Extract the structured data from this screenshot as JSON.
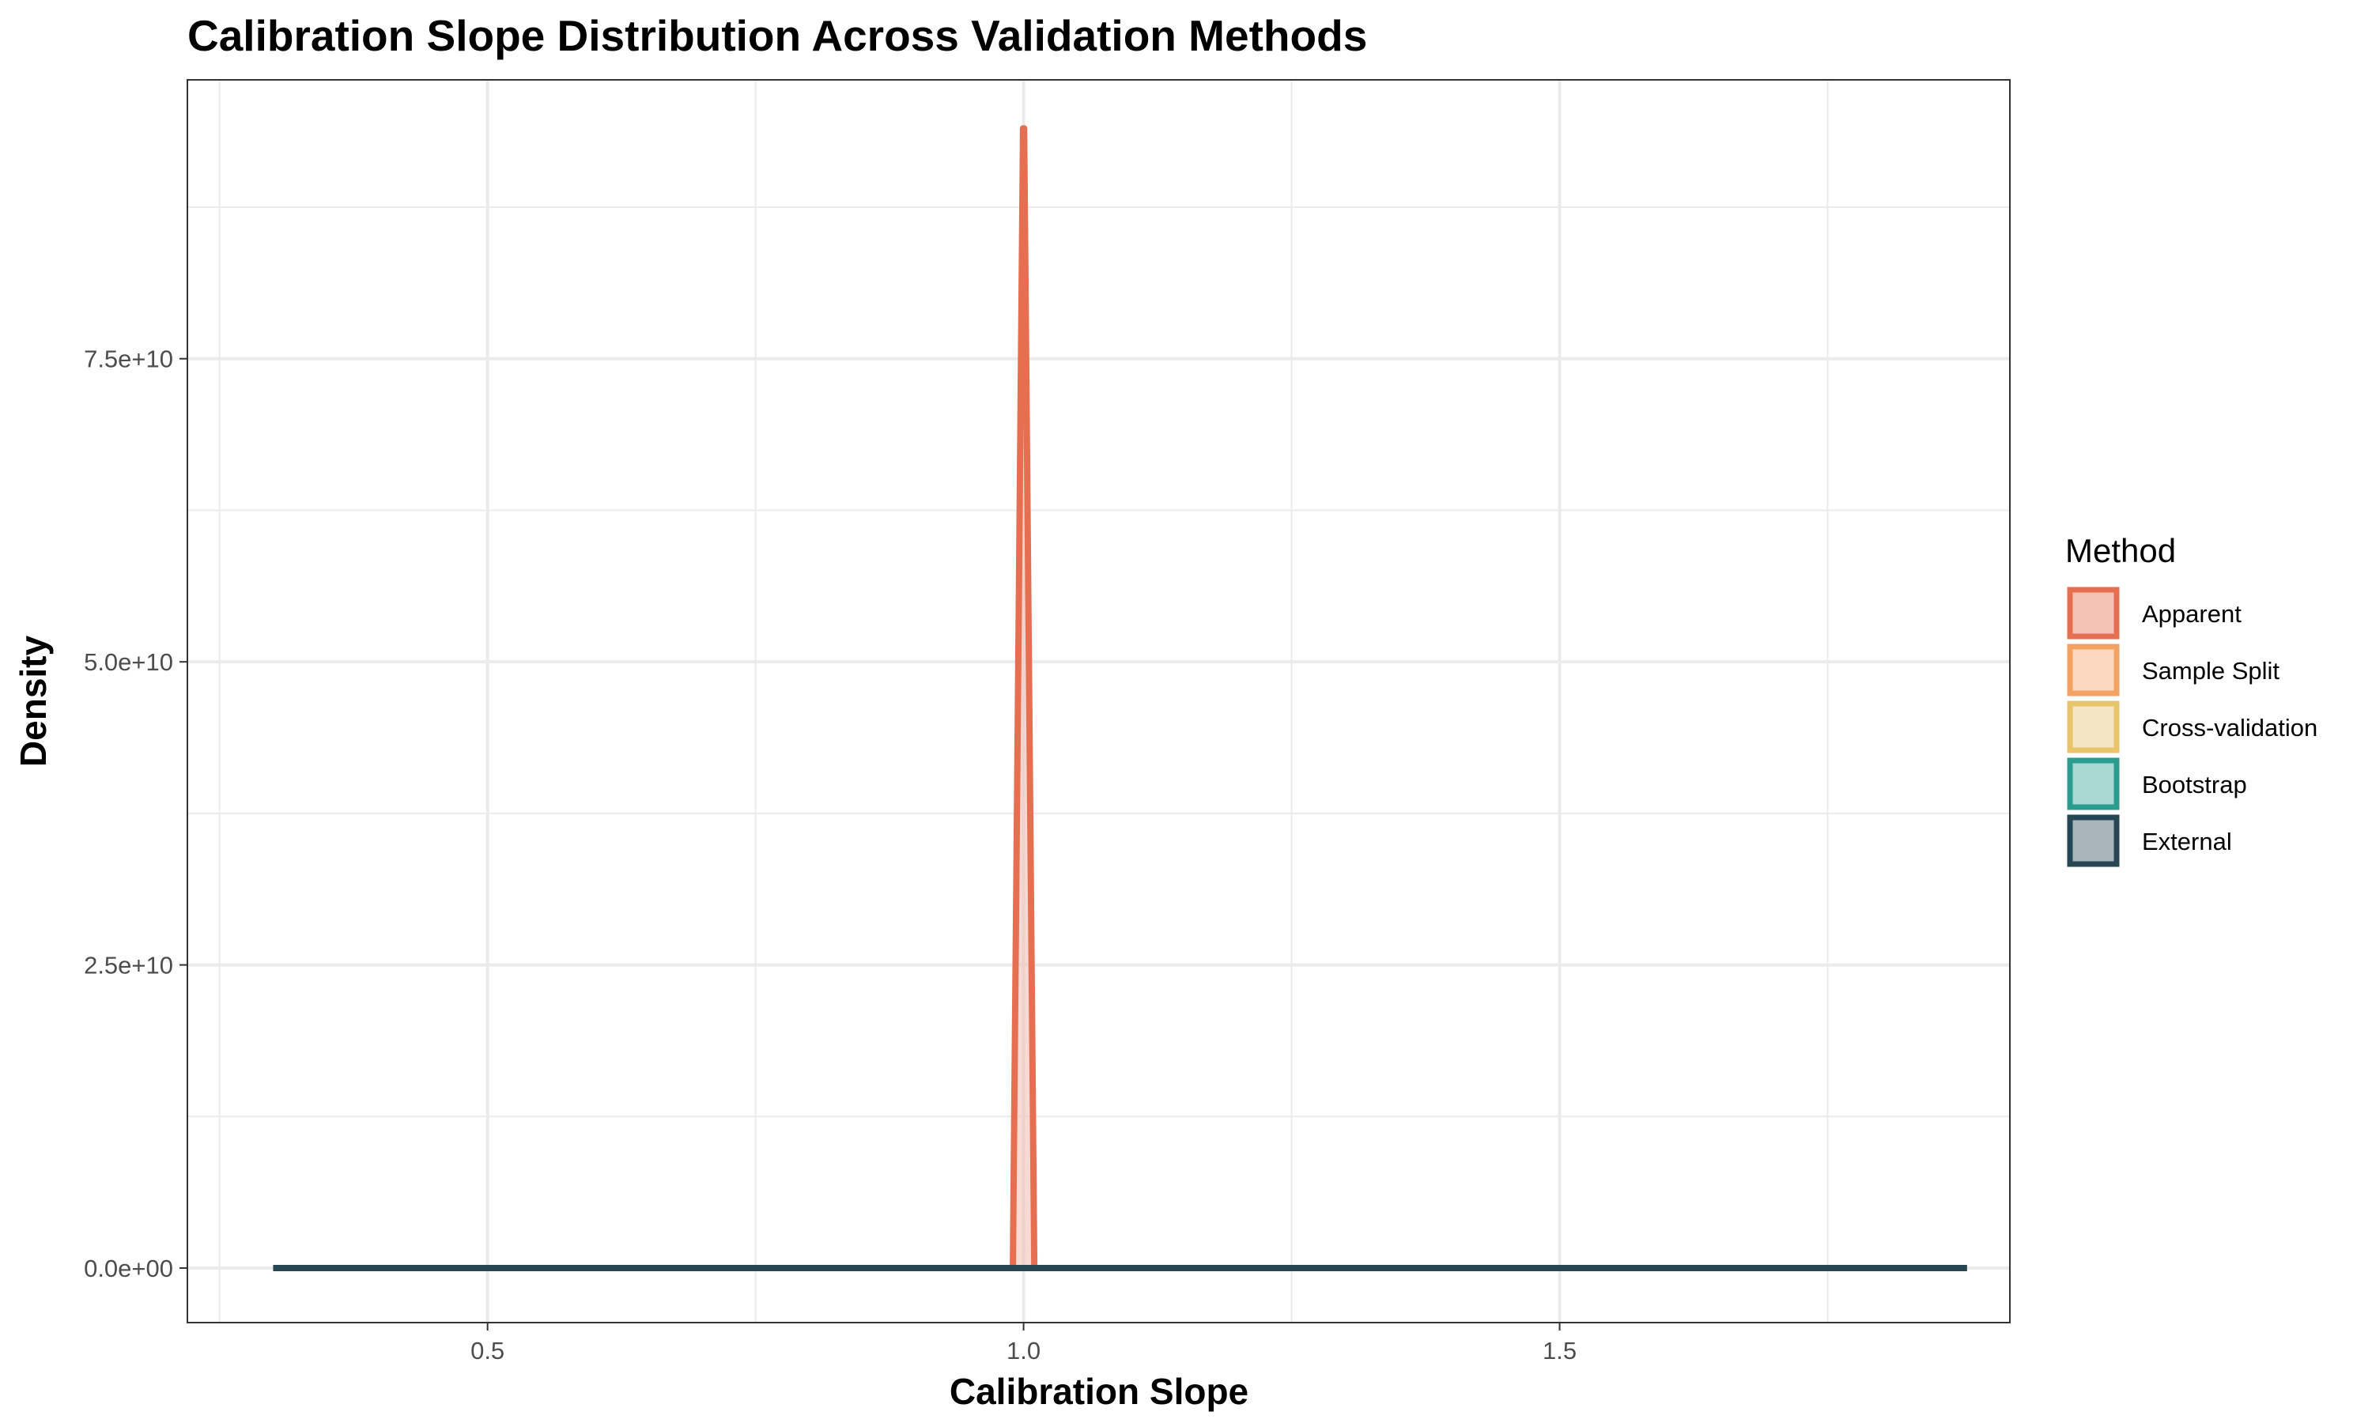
{
  "chart_data": {
    "type": "area",
    "title": "Calibration Slope Distribution Across Validation Methods",
    "xlabel": "Calibration Slope",
    "ylabel": "Density",
    "xlim": [
      0.22,
      1.92
    ],
    "ylim": [
      -4500000000.0,
      98000000000.0
    ],
    "x_ticks": [
      0.5,
      1.0,
      1.5
    ],
    "x_tick_labels": [
      "0.5",
      "1.0",
      "1.5"
    ],
    "y_ticks": [
      0,
      25000000000.0,
      50000000000.0,
      75000000000.0
    ],
    "y_tick_labels": [
      "0.0e+00",
      "2.5e+10",
      "5.0e+10",
      "7.5e+10"
    ],
    "grid": true,
    "legend": {
      "title": "Method",
      "position": "right"
    },
    "series": [
      {
        "name": "Apparent",
        "color": "#e76f51",
        "fill": "#f4c2b7",
        "x": [
          0.3,
          0.99,
          0.9995,
          1.0,
          1.0005,
          1.01,
          1.88
        ],
        "y": [
          0,
          0,
          94000000000.0,
          94000000000.0,
          94000000000.0,
          0,
          0
        ]
      },
      {
        "name": "Sample Split",
        "color": "#f4a261",
        "fill": "#fad9c0",
        "x": [
          0.3,
          1.88
        ],
        "y": [
          0,
          0
        ]
      },
      {
        "name": "Cross-validation",
        "color": "#e9c46a",
        "fill": "#f4e6c4",
        "x": [
          0.3,
          1.88
        ],
        "y": [
          0,
          0
        ]
      },
      {
        "name": "Bootstrap",
        "color": "#2a9d8f",
        "fill": "#a9d8d2",
        "x": [
          0.3,
          1.88
        ],
        "y": [
          0,
          0
        ]
      },
      {
        "name": "External",
        "color": "#264653",
        "fill": "#a8b5ba",
        "x": [
          0.3,
          1.88
        ],
        "y": [
          0,
          0
        ]
      }
    ]
  }
}
